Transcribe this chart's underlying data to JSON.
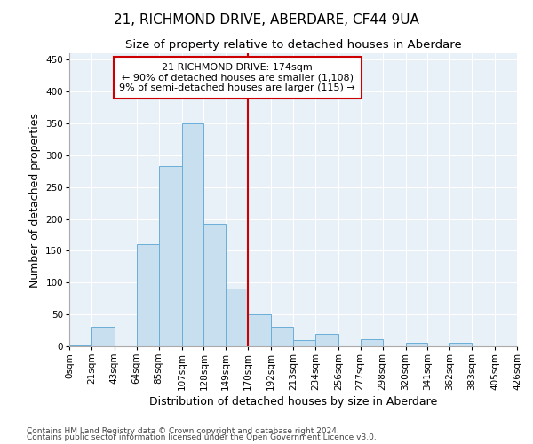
{
  "title": "21, RICHMOND DRIVE, ABERDARE, CF44 9UA",
  "subtitle": "Size of property relative to detached houses in Aberdare",
  "xlabel": "Distribution of detached houses by size in Aberdare",
  "ylabel": "Number of detached properties",
  "footnote1": "Contains HM Land Registry data © Crown copyright and database right 2024.",
  "footnote2": "Contains public sector information licensed under the Open Government Licence v3.0.",
  "bin_labels": [
    "0sqm",
    "21sqm",
    "43sqm",
    "64sqm",
    "85sqm",
    "107sqm",
    "128sqm",
    "149sqm",
    "170sqm",
    "192sqm",
    "213sqm",
    "234sqm",
    "256sqm",
    "277sqm",
    "298sqm",
    "320sqm",
    "341sqm",
    "362sqm",
    "383sqm",
    "405sqm",
    "426sqm"
  ],
  "bin_edges": [
    0,
    21,
    43,
    64,
    85,
    107,
    128,
    149,
    170,
    192,
    213,
    234,
    256,
    277,
    298,
    320,
    341,
    362,
    383,
    405,
    426
  ],
  "bar_heights": [
    2,
    30,
    0,
    160,
    283,
    350,
    192,
    91,
    50,
    30,
    10,
    20,
    0,
    11,
    0,
    5,
    0,
    5,
    0,
    0,
    4
  ],
  "bar_facecolor": "#c8dff0",
  "bar_edgecolor": "#6aaed6",
  "vline_x": 170,
  "vline_color": "#cc0000",
  "annotation_text": "21 RICHMOND DRIVE: 174sqm\n← 90% of detached houses are smaller (1,108)\n9% of semi-detached houses are larger (115) →",
  "annotation_box_edgecolor": "#cc0000",
  "annotation_box_facecolor": "#ffffff",
  "ylim": [
    0,
    460
  ],
  "yticks": [
    0,
    50,
    100,
    150,
    200,
    250,
    300,
    350,
    400,
    450
  ],
  "fig_facecolor": "#ffffff",
  "axes_facecolor": "#e8f0f8",
  "grid_color": "#ffffff",
  "title_fontsize": 11,
  "subtitle_fontsize": 9.5,
  "label_fontsize": 9,
  "tick_fontsize": 7.5,
  "annot_fontsize": 8,
  "footnote_fontsize": 6.5
}
